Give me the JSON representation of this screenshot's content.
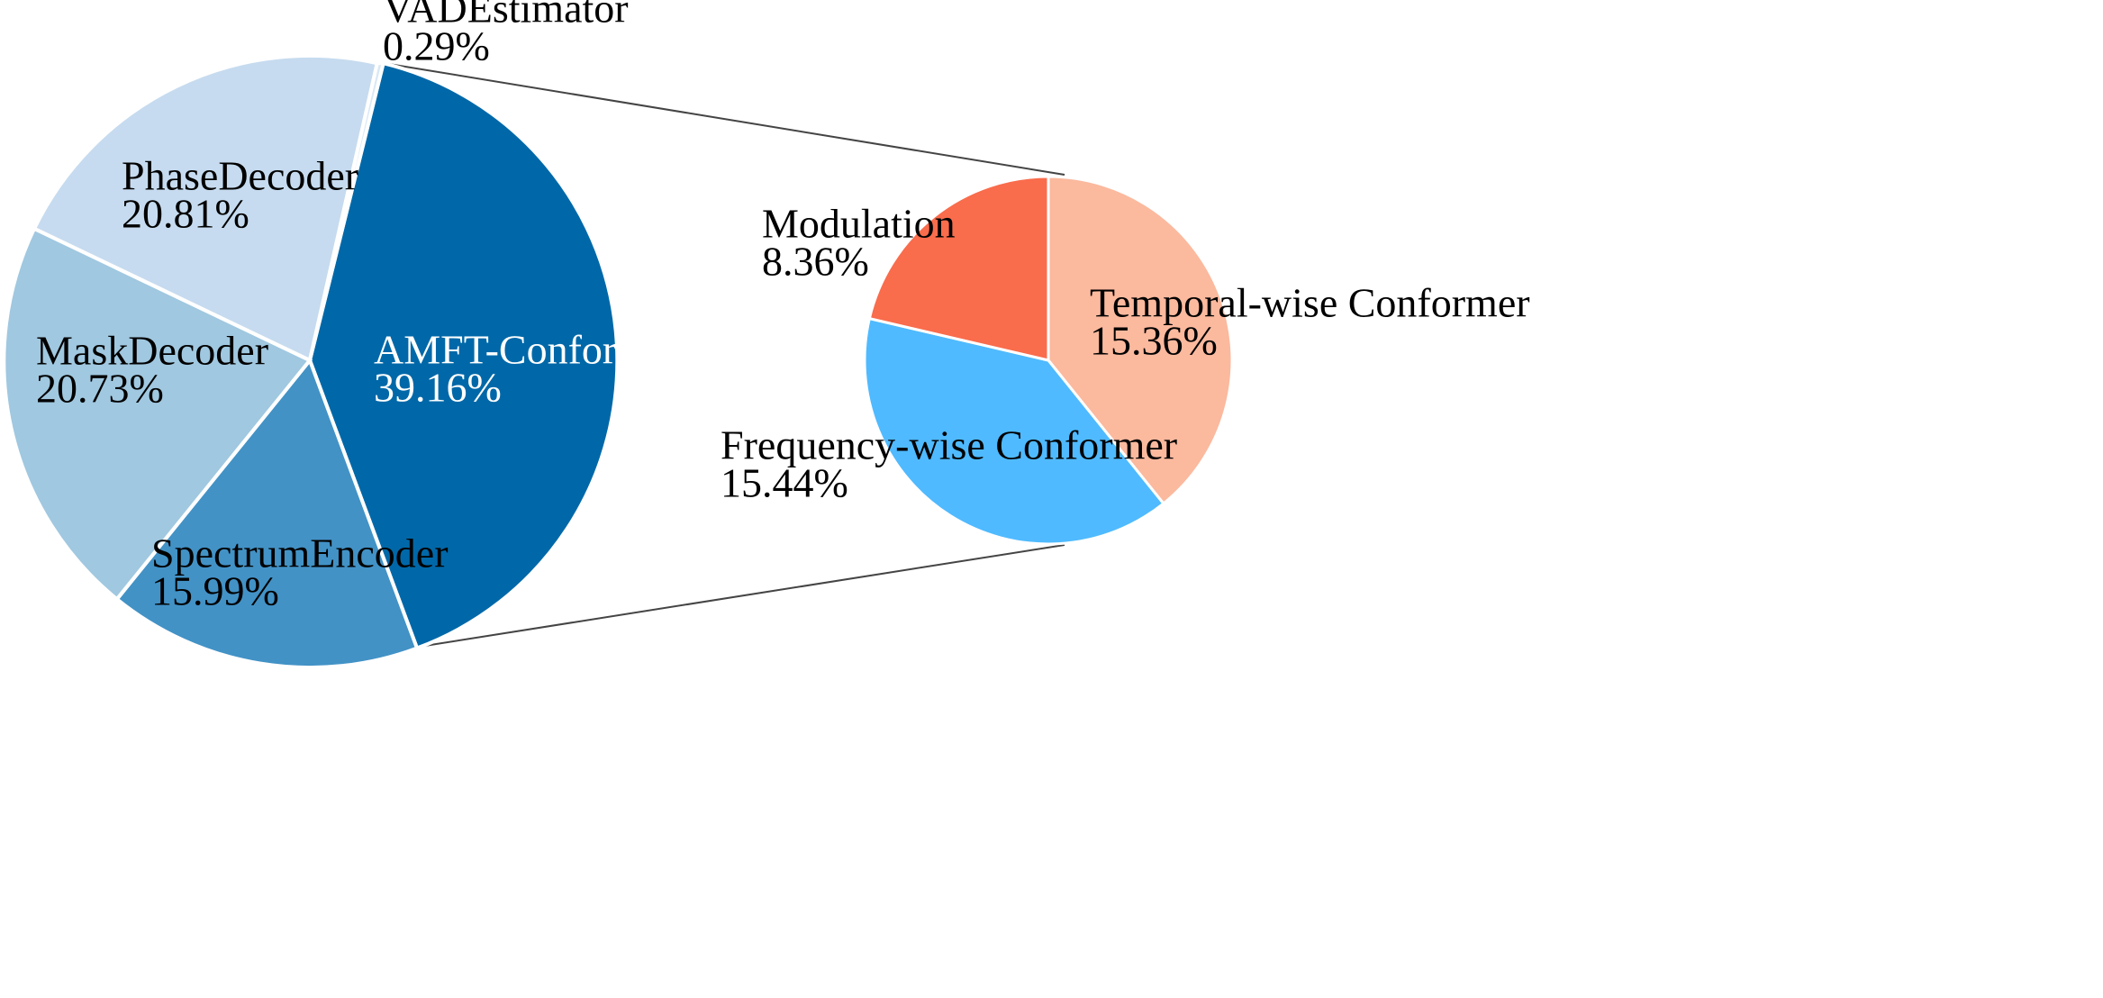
{
  "chart_data": [
    {
      "type": "pie",
      "title": "",
      "slices": [
        {
          "label": "AMFT-Conformer",
          "value": 39.16,
          "value_text": "39.16%",
          "color": "#0068a8",
          "label_color": "#ffffff"
        },
        {
          "label": "SpectrumEncoder",
          "value": 15.99,
          "value_text": "15.99%",
          "color": "#4292c6",
          "label_color": "#000000"
        },
        {
          "label": "MaskDecoder",
          "value": 20.73,
          "value_text": "20.73%",
          "color": "#a0c8e0",
          "label_color": "#000000"
        },
        {
          "label": "PhaseDecoder",
          "value": 20.81,
          "value_text": "20.81%",
          "color": "#c6dbef",
          "label_color": "#000000"
        },
        {
          "label": "VADEstimator",
          "value": 0.29,
          "value_text": "0.29%",
          "color": "#d8e8f5",
          "label_color": "#000000"
        }
      ]
    },
    {
      "type": "pie",
      "title": "",
      "breakdown_of": "AMFT-Conformer",
      "slices": [
        {
          "label": "Temporal-wise Conformer",
          "value": 15.36,
          "value_text": "15.36%",
          "color": "#fbb99e",
          "label_color": "#000000"
        },
        {
          "label": "Frequency-wise Conformer",
          "value": 15.44,
          "value_text": "15.44%",
          "color": "#4fbaff",
          "label_color": "#000000"
        },
        {
          "label": "Modulation",
          "value": 8.36,
          "value_text": "8.36%",
          "color": "#f96c4c",
          "label_color": "#000000"
        }
      ]
    }
  ]
}
